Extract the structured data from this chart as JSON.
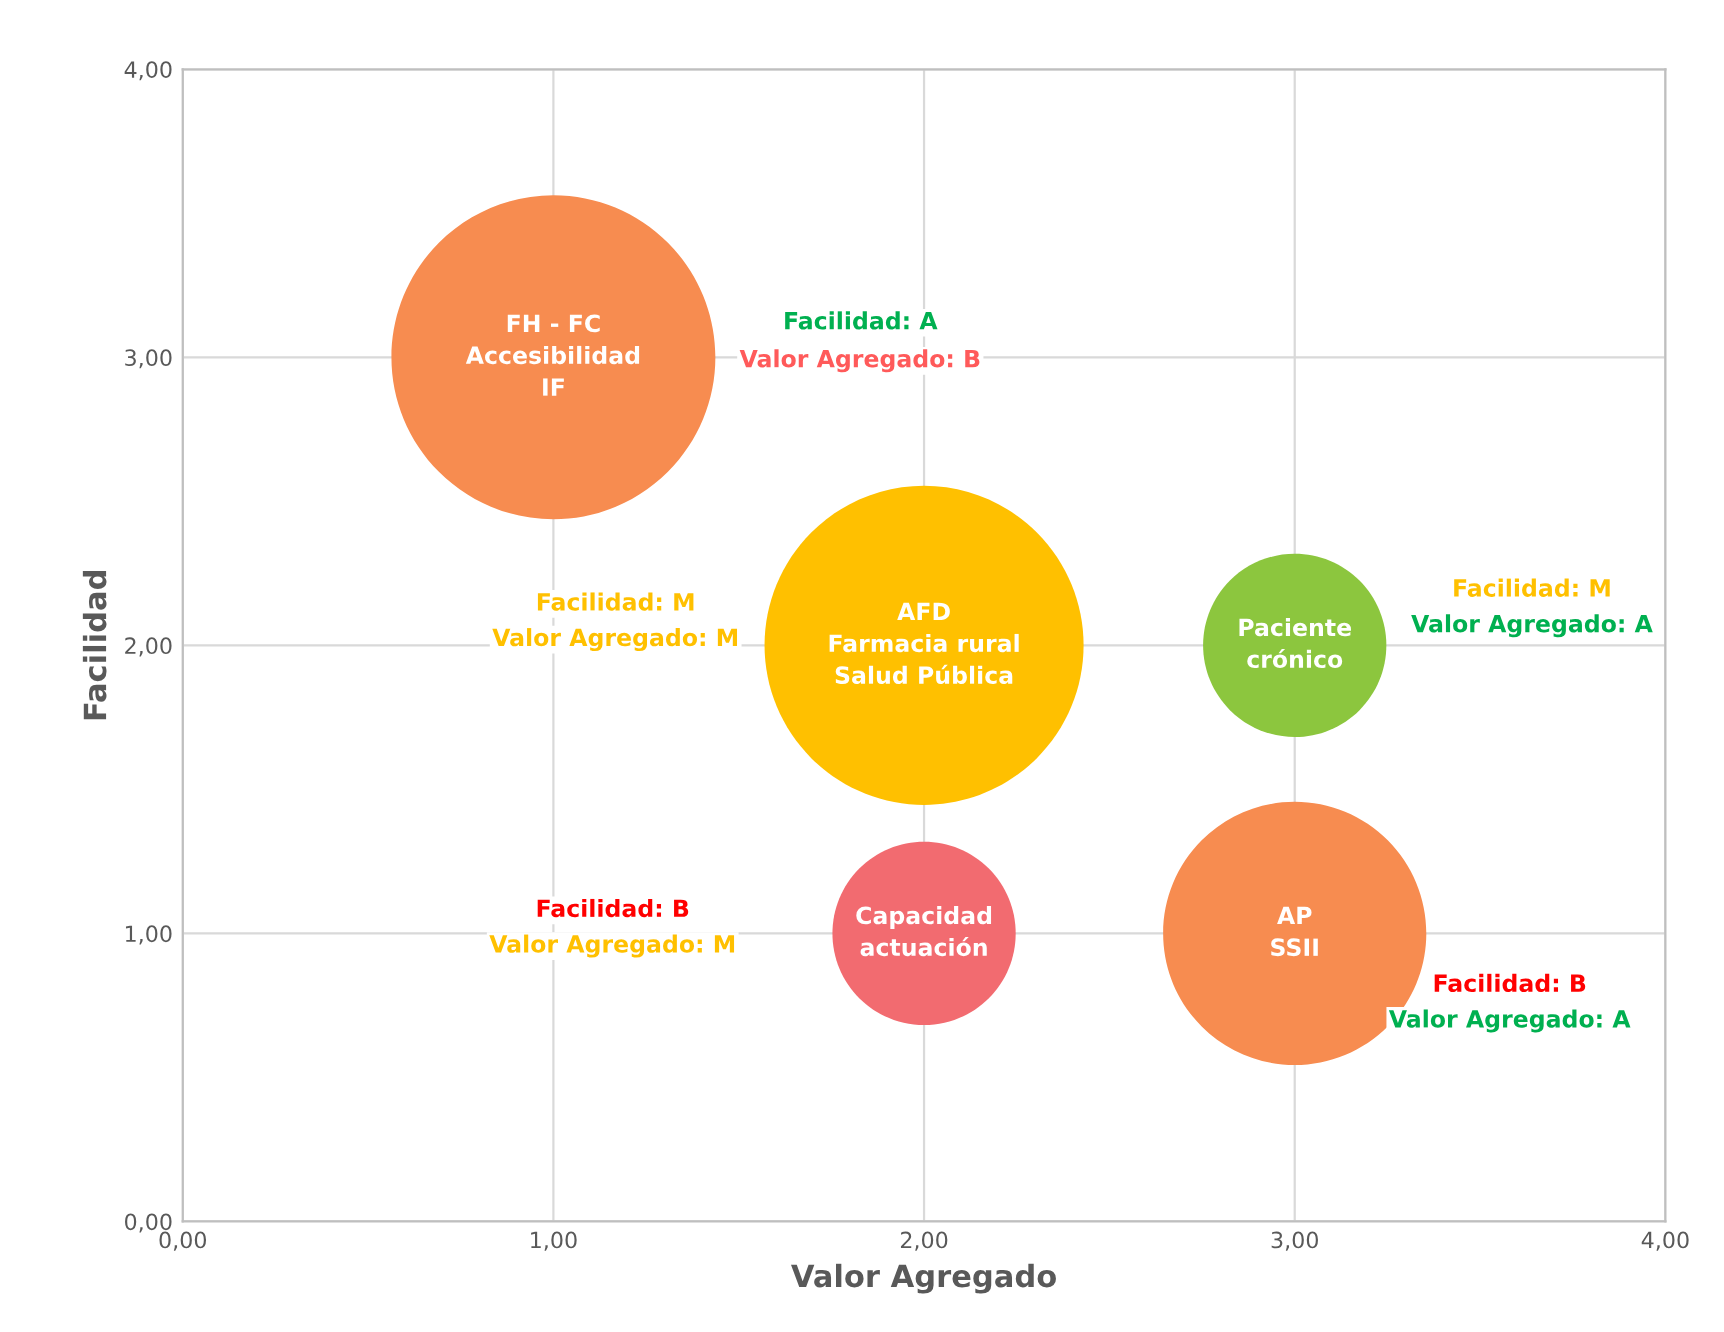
{
  "chart_data": {
    "type": "bubble",
    "xlabel": "Valor Agregado",
    "ylabel": "Facilidad",
    "x": [
      1,
      2,
      3,
      2,
      3
    ],
    "values": [
      3,
      2,
      2,
      1,
      1
    ],
    "sizes": [
      1,
      0.97,
      0.32,
      0.32,
      0.66
    ],
    "colors": [
      "#f78c50",
      "#ffc000",
      "#8cc63e",
      "#f26b70",
      "#f78c50"
    ],
    "value_labels": [
      "FH - FC\nAccesibilidad\nIF",
      "AFD\nFarmacia rural\nSalud Pública",
      "Paciente\ncrónico",
      "Capacidad\nactuación",
      "AP\nSSII"
    ],
    "xlim": [
      0,
      4
    ],
    "ylim": [
      0,
      4
    ],
    "xticks": [
      {
        "value": 0,
        "label": "0,00"
      },
      {
        "value": 1,
        "label": "1,00"
      },
      {
        "value": 2,
        "label": "2,00"
      },
      {
        "value": 3,
        "label": "3,00"
      },
      {
        "value": 4,
        "label": "4,00"
      }
    ],
    "yticks": [
      {
        "value": 0,
        "label": "0,00"
      },
      {
        "value": 1,
        "label": "1,00"
      },
      {
        "value": 2,
        "label": "2,00"
      },
      {
        "value": 3,
        "label": "3,00"
      },
      {
        "value": 4,
        "label": "4,00"
      }
    ],
    "grid": true,
    "annotations": [
      "Facilidad: A",
      "Valor Agregado: B",
      "Facilidad: M",
      "Valor Agregado: M",
      "Facilidad: M",
      "Valor Agregado: A",
      "Facilidad: B",
      "Valor Agregado: M",
      "Facilidad: B",
      "Valor Agregado: A"
    ]
  }
}
